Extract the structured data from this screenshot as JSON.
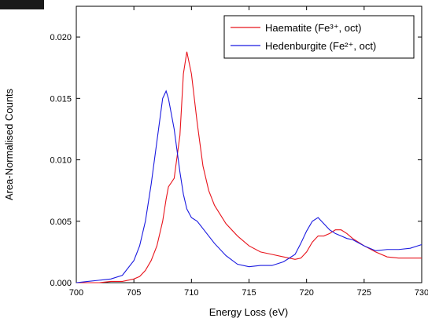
{
  "chart_data": {
    "type": "line",
    "x_label": "Energy Loss (eV)",
    "y_label": "Area-Normalised Counts",
    "x": [
      700,
      701,
      702,
      703,
      704,
      705,
      705.5,
      706,
      706.5,
      707,
      707.5,
      707.8,
      708,
      708.5,
      709,
      709.3,
      709.6,
      710,
      710.5,
      711,
      711.5,
      712,
      713,
      714,
      715,
      716,
      717,
      718,
      719,
      719.5,
      720,
      720.5,
      721,
      721.5,
      722,
      722.5,
      723,
      723.5,
      724,
      725,
      726,
      727,
      728,
      729,
      730
    ],
    "series": [
      {
        "name": "Haematite (Fe³⁺, oct)",
        "color": "#e8141c",
        "values": [
          0,
          0,
          0,
          0.0001,
          0.0001,
          0.0003,
          0.0005,
          0.001,
          0.0018,
          0.003,
          0.005,
          0.0068,
          0.0078,
          0.0085,
          0.012,
          0.017,
          0.0188,
          0.017,
          0.013,
          0.0095,
          0.0075,
          0.0063,
          0.0048,
          0.0038,
          0.003,
          0.0025,
          0.0023,
          0.0021,
          0.0019,
          0.002,
          0.0025,
          0.0033,
          0.0038,
          0.0038,
          0.004,
          0.0043,
          0.0043,
          0.004,
          0.0036,
          0.003,
          0.0025,
          0.0021,
          0.002,
          0.002,
          0.002
        ]
      },
      {
        "name": "Hedenburgite (Fe²⁺, oct)",
        "color": "#1a1ae0",
        "values": [
          0,
          0.0001,
          0.0002,
          0.0003,
          0.0006,
          0.0018,
          0.003,
          0.005,
          0.008,
          0.0115,
          0.015,
          0.0156,
          0.015,
          0.0125,
          0.009,
          0.0072,
          0.006,
          0.0053,
          0.005,
          0.0044,
          0.0038,
          0.0032,
          0.0022,
          0.0015,
          0.0013,
          0.0014,
          0.0014,
          0.0017,
          0.0023,
          0.0032,
          0.0042,
          0.005,
          0.0053,
          0.0048,
          0.0043,
          0.004,
          0.0038,
          0.0036,
          0.0035,
          0.003,
          0.0026,
          0.0027,
          0.0027,
          0.0028,
          0.0031
        ]
      }
    ],
    "xlim": [
      700,
      730
    ],
    "xticks": [
      700,
      705,
      710,
      715,
      720,
      725,
      730
    ],
    "ylim": [
      0,
      0.0225
    ],
    "yticks": [
      {
        "value": 0,
        "label": "0.000"
      },
      {
        "value": 0.005,
        "label": "0.005"
      },
      {
        "value": 0.01,
        "label": "0.010"
      },
      {
        "value": 0.015,
        "label": "0.015"
      },
      {
        "value": 0.02,
        "label": "0.020"
      }
    ],
    "legend": "upper-right"
  }
}
